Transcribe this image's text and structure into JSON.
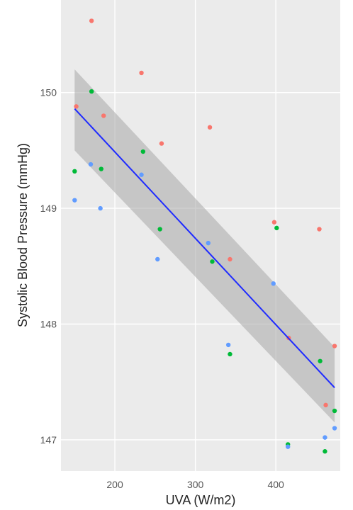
{
  "chart_data": {
    "type": "scatter",
    "xlabel": "UVA (W/m2)",
    "ylabel": "Systolic Blood Pressure (mmHg)",
    "xlim": [
      133,
      480
    ],
    "ylim": [
      146.73,
      150.8
    ],
    "x_ticks": [
      200,
      300,
      400
    ],
    "y_ticks": [
      147,
      148,
      149,
      150
    ],
    "grid": true,
    "legend": "none",
    "colors": {
      "panel": "#ebebeb",
      "grid_major": "#ffffff",
      "series_1": "#f8766d",
      "series_2": "#00ba38",
      "series_3": "#619cff",
      "fit_line": "#1f2bff",
      "ribbon": "#a8a8a8"
    },
    "series": [
      {
        "color_key": "series_1",
        "points": [
          [
            152,
            149.88
          ],
          [
            171,
            150.62
          ],
          [
            186,
            149.8
          ],
          [
            233,
            150.17
          ],
          [
            258,
            149.56
          ],
          [
            318,
            149.7
          ],
          [
            343,
            148.56
          ],
          [
            398,
            148.88
          ],
          [
            416,
            147.88
          ],
          [
            454,
            148.82
          ],
          [
            462,
            147.3
          ],
          [
            473,
            147.81
          ]
        ]
      },
      {
        "color_key": "series_2",
        "points": [
          [
            150,
            149.32
          ],
          [
            171,
            150.01
          ],
          [
            183,
            149.34
          ],
          [
            235,
            149.49
          ],
          [
            256,
            148.82
          ],
          [
            321,
            148.54
          ],
          [
            343,
            147.74
          ],
          [
            401,
            148.83
          ],
          [
            415,
            146.96
          ],
          [
            455,
            147.68
          ],
          [
            461,
            146.9
          ],
          [
            473,
            147.25
          ]
        ]
      },
      {
        "color_key": "series_3",
        "points": [
          [
            150,
            149.07
          ],
          [
            170,
            149.38
          ],
          [
            182,
            149.0
          ],
          [
            233,
            149.29
          ],
          [
            253,
            148.56
          ],
          [
            316,
            148.7
          ],
          [
            341,
            147.82
          ],
          [
            397,
            148.35
          ],
          [
            415,
            146.94
          ],
          [
            461,
            147.02
          ],
          [
            473,
            147.1
          ]
        ]
      }
    ],
    "fit": {
      "method": "linear",
      "x": [
        150,
        473
      ],
      "y": [
        149.86,
        147.45
      ],
      "ci_lower": [
        149.5,
        147.15
      ],
      "ci_upper": [
        150.2,
        147.8
      ]
    }
  }
}
